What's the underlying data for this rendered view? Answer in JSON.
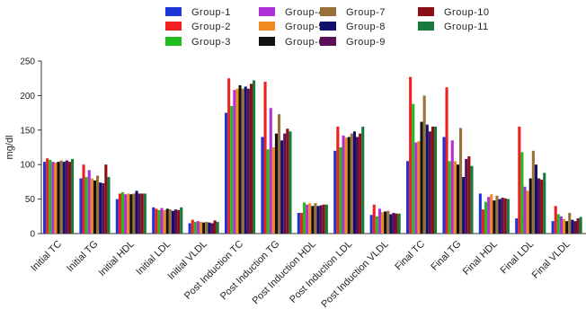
{
  "chart_data": {
    "type": "bar",
    "title": "",
    "xlabel": "",
    "ylabel": "mg/dl",
    "ylim": [
      0,
      250
    ],
    "yticks": [
      0,
      50,
      100,
      150,
      200,
      250
    ],
    "grid": false,
    "legend_position": "top",
    "categories": [
      "Initial TC",
      "Initial TG",
      "Initial HDL",
      "Initial LDL",
      "Initial VLDL",
      "Post Induction TC",
      "Post Induction TG",
      "Post Induction HDL",
      "Post Induction LDL",
      "Post Induction VLDL",
      "Final TC",
      "Final TG",
      "Final HDL",
      "Final LDL",
      "Final VLDL"
    ],
    "series": [
      {
        "name": "Group-1",
        "color": "#1f35d6",
        "values": [
          104,
          80,
          50,
          38,
          15,
          175,
          140,
          30,
          120,
          27,
          105,
          140,
          58,
          22,
          18
        ]
      },
      {
        "name": "Group-2",
        "color": "#ee2020",
        "values": [
          109,
          100,
          58,
          36,
          20,
          225,
          220,
          30,
          155,
          42,
          227,
          212,
          35,
          155,
          40
        ]
      },
      {
        "name": "Group-3",
        "color": "#22bb22",
        "values": [
          107,
          82,
          60,
          34,
          17,
          185,
          122,
          45,
          125,
          25,
          188,
          105,
          46,
          118,
          28
        ]
      },
      {
        "name": "Group-4",
        "color": "#b030d8",
        "values": [
          104,
          92,
          57,
          37,
          18,
          208,
          182,
          42,
          142,
          36,
          132,
          135,
          53,
          68,
          25
        ]
      },
      {
        "name": "Group-5",
        "color": "#f08a20",
        "values": [
          103,
          80,
          58,
          34,
          17,
          210,
          125,
          44,
          139,
          31,
          134,
          105,
          57,
          62,
          21
        ]
      },
      {
        "name": "Group-6",
        "color": "#111111",
        "values": [
          104,
          77,
          57,
          36,
          16,
          215,
          145,
          40,
          140,
          32,
          162,
          100,
          48,
          80,
          18
        ]
      },
      {
        "name": "Group-7",
        "color": "#98703a",
        "values": [
          106,
          84,
          58,
          35,
          17,
          210,
          173,
          44,
          145,
          33,
          200,
          153,
          55,
          120,
          30
        ]
      },
      {
        "name": "Group-8",
        "color": "#10106e",
        "values": [
          104,
          74,
          62,
          33,
          16,
          213,
          135,
          40,
          148,
          28,
          158,
          82,
          50,
          100,
          20
        ]
      },
      {
        "name": "Group-9",
        "color": "#5a0f5a",
        "values": [
          106,
          73,
          58,
          35,
          15,
          210,
          145,
          41,
          140,
          30,
          148,
          108,
          52,
          80,
          18
        ]
      },
      {
        "name": "Group-10",
        "color": "#8b0f14",
        "values": [
          104,
          100,
          58,
          34,
          19,
          217,
          152,
          42,
          145,
          29,
          155,
          112,
          51,
          78,
          22
        ]
      },
      {
        "name": "Group-11",
        "color": "#157a3a",
        "values": [
          108,
          82,
          58,
          38,
          17,
          222,
          148,
          42,
          155,
          29,
          155,
          98,
          50,
          88,
          24
        ]
      }
    ]
  }
}
